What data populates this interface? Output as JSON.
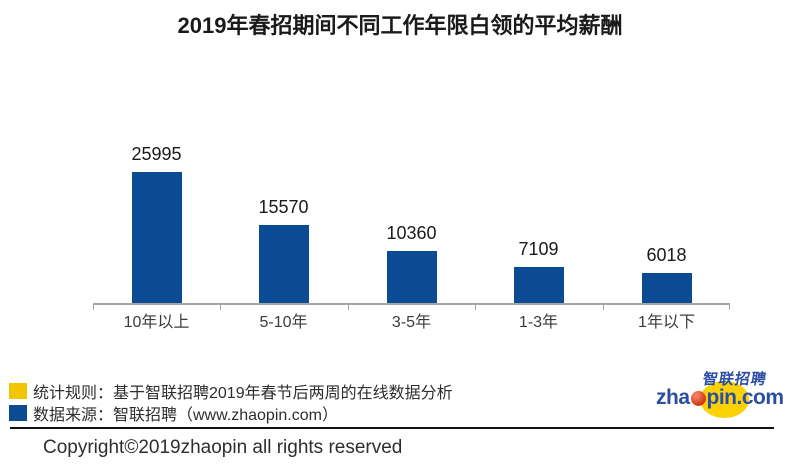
{
  "chart_data": {
    "type": "bar",
    "title": "2019年春招期间不同工作年限白领的平均薪酬",
    "categories": [
      "10年以上",
      "5-10年",
      "3-5年",
      "1-3年",
      "1年以下"
    ],
    "values": [
      25995,
      15570,
      10360,
      7109,
      6018
    ],
    "xlabel": "",
    "ylabel": "",
    "value_labels_shown": true,
    "grid": false,
    "legend_position": "none",
    "bar_color": "#0b4b94",
    "axis_color": "#a6a6a6"
  },
  "legend": {
    "items": [
      {
        "color": "#f3c400",
        "label": "统计规则：基于智联招聘2019年春节后两周的在线数据分析"
      },
      {
        "color": "#0b4b94",
        "label": "数据来源：智联招聘（www.zhaopin.com）"
      }
    ]
  },
  "footer": {
    "copyright": "Copyright©2019zhaopin all rights reserved"
  },
  "logo": {
    "chinese": "智联招聘",
    "domain_prefix": "zha",
    "domain_suffix": "pin.com",
    "blue": "#2b4ea2",
    "yellow": "#fcd205",
    "red": "#d13b1b"
  }
}
